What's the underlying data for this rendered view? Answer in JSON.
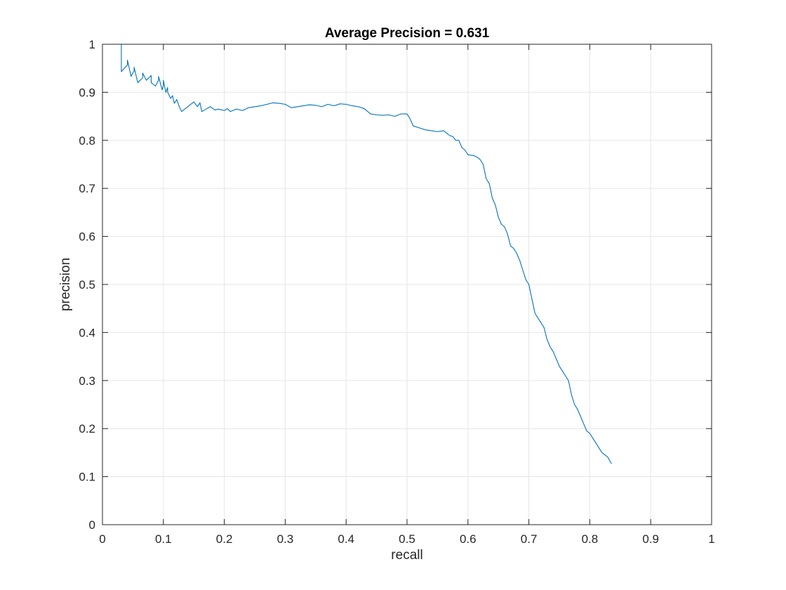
{
  "chart_data": {
    "type": "line",
    "title": "Average Precision = 0.631",
    "xlabel": "recall",
    "ylabel": "precision",
    "xlim": [
      0,
      1
    ],
    "ylim": [
      0,
      1
    ],
    "xticks": [
      "0",
      "0.1",
      "0.2",
      "0.3",
      "0.4",
      "0.5",
      "0.6",
      "0.7",
      "0.8",
      "0.9",
      "1"
    ],
    "yticks": [
      "0",
      "0.1",
      "0.2",
      "0.3",
      "0.4",
      "0.5",
      "0.6",
      "0.7",
      "0.8",
      "0.9",
      "1"
    ],
    "grid": true,
    "line_color": "#0072bd",
    "series": [
      {
        "x": [
          0.0,
          0.031,
          0.031,
          0.036,
          0.041,
          0.041,
          0.047,
          0.052,
          0.052,
          0.058,
          0.066,
          0.066,
          0.072,
          0.08,
          0.08,
          0.087,
          0.092,
          0.092,
          0.098,
          0.1,
          0.1,
          0.104,
          0.107,
          0.107,
          0.112,
          0.115,
          0.118,
          0.122,
          0.126,
          0.13,
          0.14,
          0.15,
          0.156,
          0.16,
          0.163,
          0.17,
          0.177,
          0.185,
          0.19,
          0.2,
          0.205,
          0.21,
          0.22,
          0.23,
          0.24,
          0.25,
          0.26,
          0.27,
          0.28,
          0.29,
          0.3,
          0.31,
          0.32,
          0.33,
          0.34,
          0.35,
          0.36,
          0.37,
          0.38,
          0.39,
          0.4,
          0.41,
          0.42,
          0.43,
          0.44,
          0.45,
          0.46,
          0.47,
          0.48,
          0.49,
          0.5,
          0.505,
          0.51,
          0.52,
          0.53,
          0.54,
          0.55,
          0.56,
          0.57,
          0.575,
          0.58,
          0.585,
          0.59,
          0.595,
          0.6,
          0.61,
          0.615,
          0.62,
          0.625,
          0.63,
          0.635,
          0.64,
          0.645,
          0.65,
          0.655,
          0.66,
          0.665,
          0.67,
          0.675,
          0.68,
          0.685,
          0.69,
          0.695,
          0.7,
          0.705,
          0.71,
          0.715,
          0.72,
          0.725,
          0.73,
          0.735,
          0.74,
          0.745,
          0.75,
          0.755,
          0.76,
          0.765,
          0.77,
          0.775,
          0.78,
          0.785,
          0.79,
          0.795,
          0.8,
          0.805,
          0.81,
          0.815,
          0.82,
          0.825,
          0.83,
          0.832,
          0.834,
          0.836
        ],
        "y": [
          1.0,
          1.0,
          0.943,
          0.95,
          0.957,
          0.967,
          0.933,
          0.945,
          0.952,
          0.92,
          0.93,
          0.94,
          0.925,
          0.935,
          0.92,
          0.913,
          0.925,
          0.933,
          0.905,
          0.915,
          0.925,
          0.9,
          0.91,
          0.9,
          0.887,
          0.893,
          0.877,
          0.885,
          0.87,
          0.86,
          0.87,
          0.88,
          0.87,
          0.878,
          0.86,
          0.865,
          0.87,
          0.863,
          0.865,
          0.862,
          0.866,
          0.86,
          0.865,
          0.862,
          0.868,
          0.87,
          0.872,
          0.875,
          0.878,
          0.877,
          0.875,
          0.868,
          0.87,
          0.872,
          0.874,
          0.873,
          0.87,
          0.875,
          0.872,
          0.876,
          0.875,
          0.872,
          0.87,
          0.866,
          0.855,
          0.853,
          0.852,
          0.853,
          0.85,
          0.855,
          0.855,
          0.845,
          0.83,
          0.826,
          0.822,
          0.82,
          0.818,
          0.82,
          0.81,
          0.808,
          0.8,
          0.8,
          0.785,
          0.78,
          0.77,
          0.768,
          0.765,
          0.76,
          0.75,
          0.72,
          0.71,
          0.68,
          0.665,
          0.64,
          0.625,
          0.62,
          0.605,
          0.58,
          0.575,
          0.565,
          0.55,
          0.53,
          0.51,
          0.5,
          0.47,
          0.44,
          0.43,
          0.42,
          0.41,
          0.385,
          0.37,
          0.36,
          0.345,
          0.33,
          0.32,
          0.31,
          0.3,
          0.27,
          0.25,
          0.24,
          0.225,
          0.21,
          0.195,
          0.19,
          0.18,
          0.17,
          0.16,
          0.15,
          0.145,
          0.14,
          0.135,
          0.13,
          0.127
        ]
      }
    ]
  }
}
